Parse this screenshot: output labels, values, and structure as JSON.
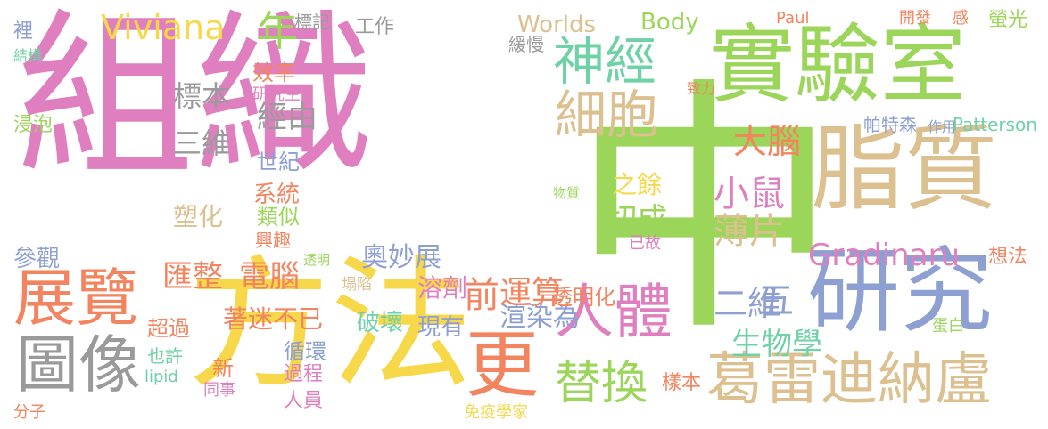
{
  "colors": {
    "pink": "#e07fbf",
    "green": "#9bd55a",
    "tan": "#dcc08f",
    "blue": "#8e9fd2",
    "orange": "#f2845f",
    "yellow": "#f6d84a",
    "teal": "#6fd1a6",
    "gray": "#9a9a9a"
  },
  "words": [
    {
      "text": "組織",
      "color": "pink"
    },
    {
      "text": "中",
      "color": "green"
    },
    {
      "text": "實驗室",
      "color": "green"
    },
    {
      "text": "方法",
      "color": "yellow"
    },
    {
      "text": "脂質",
      "color": "tan"
    },
    {
      "text": "研究",
      "color": "blue"
    },
    {
      "text": "葛雷迪納盧",
      "color": "tan"
    },
    {
      "text": "神經",
      "color": "teal"
    },
    {
      "text": "細胞",
      "color": "tan"
    },
    {
      "text": "展覽",
      "color": "orange"
    },
    {
      "text": "圖像",
      "color": "gray"
    },
    {
      "text": "更",
      "color": "orange"
    },
    {
      "text": "人體",
      "color": "pink"
    },
    {
      "text": "替換",
      "color": "green"
    },
    {
      "text": "Viviana",
      "color": "yellow"
    },
    {
      "text": "Gradinaru",
      "color": "pink"
    },
    {
      "text": "年",
      "color": "green"
    },
    {
      "text": "大腦",
      "color": "orange"
    },
    {
      "text": "小鼠",
      "color": "pink"
    },
    {
      "text": "薄片",
      "color": "tan"
    },
    {
      "text": "切成",
      "color": "green"
    },
    {
      "text": "之餘",
      "color": "yellow"
    },
    {
      "text": "經由",
      "color": "gray"
    },
    {
      "text": "三維",
      "color": "gray"
    },
    {
      "text": "標本",
      "color": "gray"
    },
    {
      "text": "工作",
      "color": "gray"
    },
    {
      "text": "標記",
      "color": "gray"
    },
    {
      "text": "緩慢",
      "color": "gray"
    },
    {
      "text": "效率",
      "color": "orange"
    },
    {
      "text": "研究生",
      "color": "pink"
    },
    {
      "text": "世紀",
      "color": "blue"
    },
    {
      "text": "系統",
      "color": "orange"
    },
    {
      "text": "類似",
      "color": "green"
    },
    {
      "text": "塑化",
      "color": "tan"
    },
    {
      "text": "興趣",
      "color": "orange"
    },
    {
      "text": "電腦",
      "color": "orange"
    },
    {
      "text": "匯整",
      "color": "orange"
    },
    {
      "text": "參觀",
      "color": "blue"
    },
    {
      "text": "透明",
      "color": "green"
    },
    {
      "text": "塌陷",
      "color": "tan"
    },
    {
      "text": "溶劑",
      "color": "pink"
    },
    {
      "text": "奧妙展",
      "color": "blue"
    },
    {
      "text": "運算",
      "color": "orange"
    },
    {
      "text": "前",
      "color": "orange"
    },
    {
      "text": "渲染為",
      "color": "blue"
    },
    {
      "text": "透明化",
      "color": "orange"
    },
    {
      "text": "生物學",
      "color": "teal"
    },
    {
      "text": "二維",
      "color": "blue"
    },
    {
      "text": "五",
      "color": "blue"
    },
    {
      "text": "著迷不已",
      "color": "orange"
    },
    {
      "text": "破壞",
      "color": "teal"
    },
    {
      "text": "現有",
      "color": "blue"
    },
    {
      "text": "超過",
      "color": "orange"
    },
    {
      "text": "循環",
      "color": "blue"
    },
    {
      "text": "也許",
      "color": "teal"
    },
    {
      "text": "新",
      "color": "orange"
    },
    {
      "text": "過程",
      "color": "pink"
    },
    {
      "text": "lipid",
      "color": "teal"
    },
    {
      "text": "同事",
      "color": "pink"
    },
    {
      "text": "人員",
      "color": "pink"
    },
    {
      "text": "分子",
      "color": "orange"
    },
    {
      "text": "樣本",
      "color": "orange"
    },
    {
      "text": "免疫學家",
      "color": "yellow"
    },
    {
      "text": "Worlds",
      "color": "tan"
    },
    {
      "text": "Body",
      "color": "green"
    },
    {
      "text": "Paul",
      "color": "orange"
    },
    {
      "text": "開發",
      "color": "orange"
    },
    {
      "text": "感",
      "color": "orange"
    },
    {
      "text": "螢光",
      "color": "green"
    },
    {
      "text": "致力",
      "color": "orange"
    },
    {
      "text": "帕特森",
      "color": "blue"
    },
    {
      "text": "作用",
      "color": "blue"
    },
    {
      "text": "Patterson",
      "color": "teal"
    },
    {
      "text": "物質",
      "color": "green"
    },
    {
      "text": "已故",
      "color": "pink"
    },
    {
      "text": "想法",
      "color": "orange"
    },
    {
      "text": "蛋白",
      "color": "green"
    },
    {
      "text": "裡",
      "color": "blue"
    },
    {
      "text": "結構",
      "color": "teal"
    },
    {
      "text": "浸泡",
      "color": "green"
    }
  ]
}
